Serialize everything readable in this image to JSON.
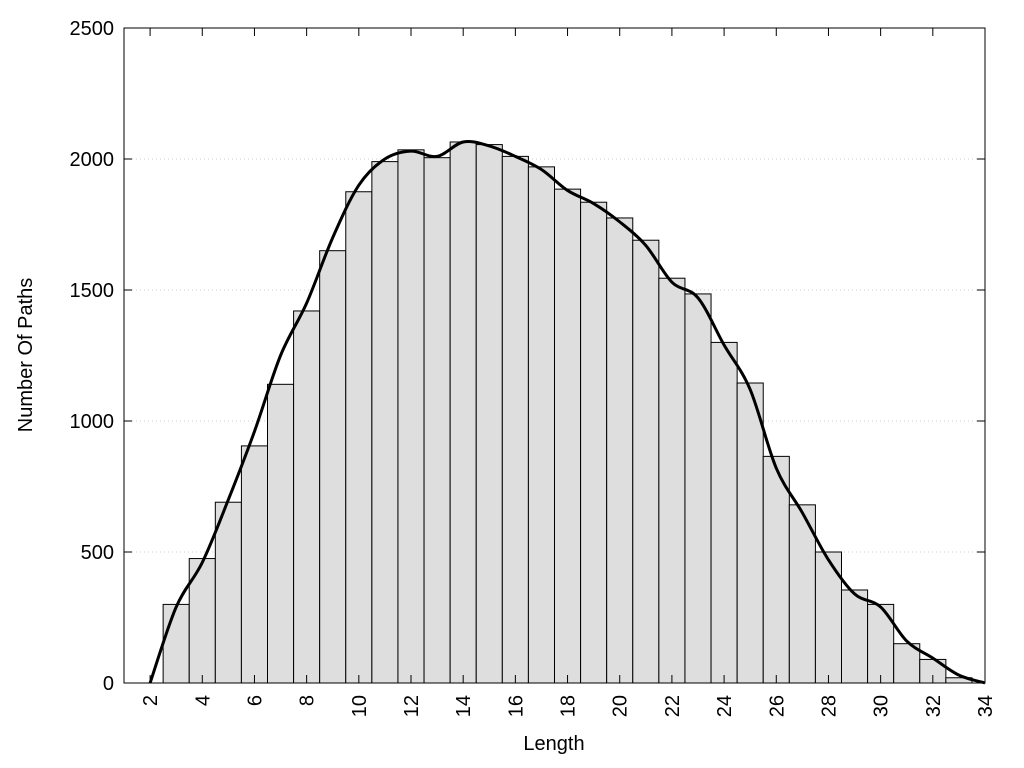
{
  "chart_data": {
    "type": "histogram",
    "xlabel": "Length",
    "ylabel": "Number Of Paths",
    "bins": [
      2.5,
      3.5,
      4.5,
      5.5,
      6.5,
      7.5,
      8.5,
      9.5,
      10.5,
      11.5,
      12.5,
      13.5,
      14.5,
      15.5,
      16.5,
      17.5,
      18.5,
      19.5,
      20.5,
      21.5,
      22.5,
      23.5,
      24.5,
      25.5,
      26.5,
      27.5,
      28.5,
      29.5,
      30.5,
      31.5,
      32.5,
      33.5
    ],
    "values": [
      300,
      475,
      690,
      905,
      1140,
      1420,
      1650,
      1875,
      1990,
      2035,
      2005,
      2065,
      2055,
      2010,
      1970,
      1885,
      1835,
      1775,
      1690,
      1545,
      1485,
      1300,
      1145,
      865,
      680,
      500,
      355,
      300,
      150,
      90,
      20
    ],
    "color": "#dedede",
    "line": {
      "x": [
        2,
        3,
        4,
        5,
        6,
        7,
        8,
        9,
        10,
        11,
        12,
        13,
        14,
        15,
        16,
        17,
        18,
        19,
        20,
        21,
        22,
        23,
        24,
        25,
        26,
        27,
        28,
        29,
        30,
        31,
        32,
        33,
        34
      ],
      "values": [
        0,
        290,
        460,
        700,
        960,
        1250,
        1450,
        1700,
        1900,
        2000,
        2030,
        2010,
        2065,
        2050,
        2010,
        1960,
        1880,
        1830,
        1760,
        1670,
        1530,
        1470,
        1290,
        1120,
        820,
        650,
        470,
        340,
        290,
        160,
        95,
        30,
        0
      ],
      "color": "#000000"
    },
    "xlim": [
      1,
      34
    ],
    "ylim": [
      0,
      2500
    ],
    "xticks": [
      2,
      4,
      6,
      8,
      10,
      12,
      14,
      16,
      18,
      20,
      22,
      24,
      26,
      28,
      30,
      32,
      34
    ],
    "yticks": [
      0,
      500,
      1000,
      1500,
      2000,
      2500
    ],
    "grid": true
  }
}
